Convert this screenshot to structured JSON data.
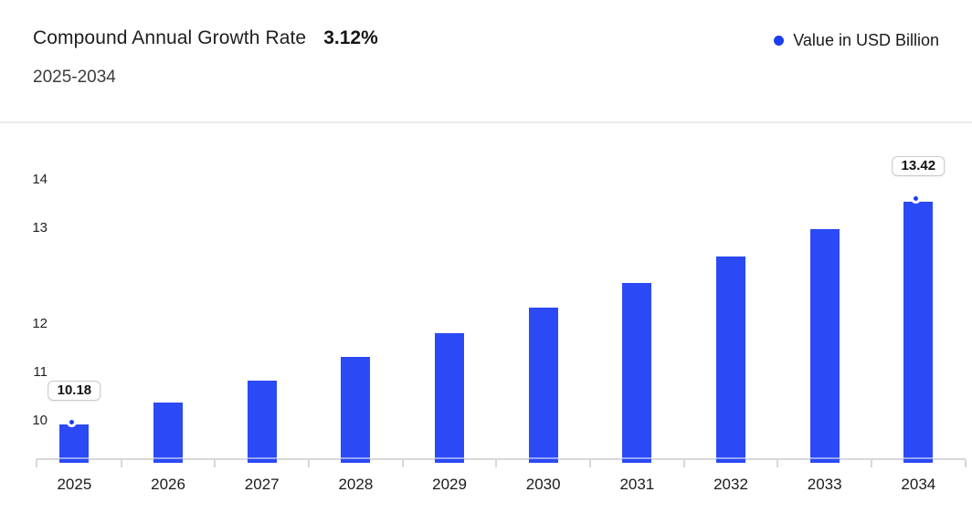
{
  "header": {
    "title": "Compound Annual Growth Rate",
    "cagr_value": "3.12%",
    "subtitle": "2025-2034",
    "legend_label": "Value in USD Billion"
  },
  "colors": {
    "bar": "#2b4af5",
    "marker_dot": "#1c3ef0",
    "legend_dot": "#1c3ef0",
    "axis_line": "#d8d8d8",
    "label_box_border": "#c9c9c9",
    "header_divider": "#ececec"
  },
  "chart_data": {
    "type": "bar",
    "title": "Compound Annual Growth Rate 3.12%",
    "subtitle": "2025-2034",
    "categories": [
      "2025",
      "2026",
      "2027",
      "2028",
      "2029",
      "2030",
      "2031",
      "2032",
      "2033",
      "2034"
    ],
    "series": [
      {
        "name": "Value in USD Billion",
        "values": [
          10.18,
          10.5,
          10.82,
          11.16,
          11.51,
          11.87,
          12.24,
          12.62,
          13.02,
          13.42
        ]
      }
    ],
    "data_labels": [
      {
        "index": 0,
        "text": "10.18"
      },
      {
        "index": 9,
        "text": "13.42"
      }
    ],
    "yticks": [
      10,
      11,
      12,
      13,
      14
    ],
    "ylim": [
      9.6,
      14.3
    ],
    "grid": false,
    "legend_position": "top-right",
    "xlabel": "",
    "ylabel": ""
  }
}
